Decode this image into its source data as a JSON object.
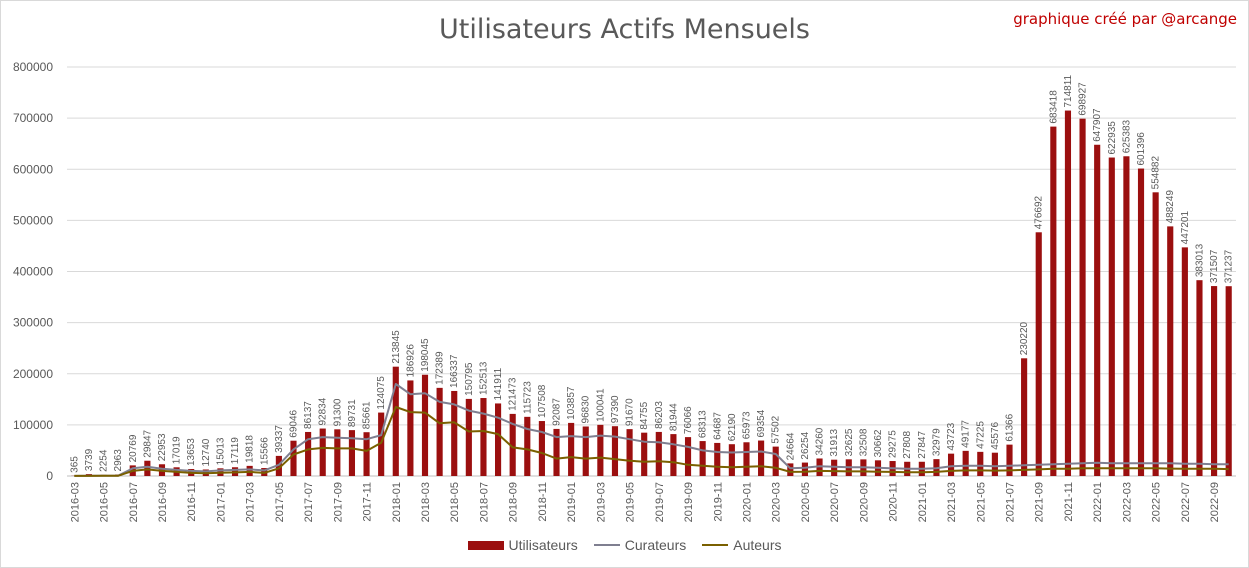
{
  "header": {
    "title": "Utilisateurs Actifs Mensuels",
    "credit": "graphique créé par  @arcange"
  },
  "colors": {
    "users": "#9b0f0f",
    "curators": "#7f7f90",
    "authors": "#7a6000",
    "grid": "#d9d9d9",
    "text": "#595959"
  },
  "chart_data": {
    "type": "bar",
    "title": "Utilisateurs Actifs Mensuels",
    "ylim": [
      0,
      800000
    ],
    "yticks": [
      0,
      100000,
      200000,
      300000,
      400000,
      500000,
      600000,
      700000,
      800000
    ],
    "grid": true,
    "legend_position": "bottom",
    "categories": [
      "2016-03",
      "2016-04",
      "2016-05",
      "2016-06",
      "2016-07",
      "2016-08",
      "2016-09",
      "2016-10",
      "2016-11",
      "2016-12",
      "2017-01",
      "2017-02",
      "2017-03",
      "2017-04",
      "2017-05",
      "2017-06",
      "2017-07",
      "2017-08",
      "2017-09",
      "2017-10",
      "2017-11",
      "2017-12",
      "2018-01",
      "2018-02",
      "2018-03",
      "2018-04",
      "2018-05",
      "2018-06",
      "2018-07",
      "2018-08",
      "2018-09",
      "2018-10",
      "2018-11",
      "2018-12",
      "2019-01",
      "2019-02",
      "2019-03",
      "2019-04",
      "2019-05",
      "2019-06",
      "2019-07",
      "2019-08",
      "2019-09",
      "2019-10",
      "2019-11",
      "2019-12",
      "2020-01",
      "2020-02",
      "2020-03",
      "2020-04",
      "2020-05",
      "2020-06",
      "2020-07",
      "2020-08",
      "2020-09",
      "2020-10",
      "2020-11",
      "2020-12",
      "2021-01",
      "2021-02",
      "2021-03",
      "2021-04",
      "2021-05",
      "2021-06",
      "2021-07",
      "2021-08",
      "2021-09",
      "2021-10",
      "2021-11",
      "2021-12",
      "2022-01",
      "2022-02",
      "2022-03",
      "2022-04",
      "2022-05",
      "2022-06",
      "2022-07",
      "2022-08",
      "2022-09",
      "2022-10"
    ],
    "series": [
      {
        "name": "Utilisateurs",
        "type": "bar",
        "values": [
          365,
          3739,
          2254,
          2963,
          20769,
          29847,
          22953,
          17019,
          13653,
          12740,
          15013,
          17119,
          19818,
          15566,
          39337,
          69046,
          86137,
          92834,
          91300,
          89731,
          85661,
          124075,
          213845,
          186926,
          198045,
          172389,
          166337,
          150795,
          152513,
          141911,
          121473,
          115723,
          107508,
          92087,
          103857,
          96830,
          100041,
          97390,
          91670,
          84755,
          86203,
          81944,
          76066,
          68313,
          64687,
          62190,
          65973,
          69354,
          57502,
          24664,
          26254,
          34260,
          31913,
          32625,
          32508,
          30662,
          29275,
          27808,
          27847,
          32979,
          43723,
          49177,
          47225,
          45576,
          61366,
          230220,
          476692,
          683418,
          714811,
          698927,
          647907,
          622935,
          625383,
          601396,
          554882,
          488249,
          447201,
          383013,
          371507,
          371237
        ]
      },
      {
        "name": "Curateurs",
        "type": "line",
        "values": [
          200,
          400,
          500,
          600,
          15000,
          18000,
          14000,
          12000,
          10000,
          9000,
          11000,
          12000,
          13000,
          11000,
          22000,
          52000,
          72000,
          76000,
          75000,
          74000,
          72000,
          80000,
          180000,
          160000,
          162000,
          145000,
          140000,
          128000,
          122000,
          114000,
          102000,
          92000,
          86000,
          76000,
          78000,
          76000,
          79000,
          77000,
          72000,
          67000,
          66000,
          62000,
          57000,
          50000,
          47000,
          46000,
          47000,
          48000,
          43000,
          15000,
          16000,
          19000,
          18000,
          17000,
          17000,
          16000,
          15000,
          14000,
          14000,
          15000,
          19000,
          20000,
          20000,
          19000,
          20000,
          21000,
          22000,
          23000,
          24000,
          25000,
          26000,
          25000,
          25000,
          25000,
          25000,
          25000,
          24000,
          24000,
          23000,
          23000
        ]
      },
      {
        "name": "Auteurs",
        "type": "line",
        "values": [
          100,
          200,
          300,
          400,
          10000,
          13000,
          10000,
          8000,
          6000,
          5500,
          6500,
          7000,
          8000,
          6000,
          15000,
          42000,
          52000,
          55000,
          54000,
          54000,
          49000,
          65000,
          135000,
          125000,
          124000,
          103000,
          105000,
          87000,
          88000,
          82000,
          56000,
          52000,
          45000,
          34000,
          37000,
          34000,
          36000,
          33000,
          30000,
          28000,
          29000,
          27000,
          22000,
          20000,
          18000,
          17000,
          18000,
          19000,
          16000,
          8000,
          8500,
          10000,
          9500,
          9000,
          9000,
          8500,
          8000,
          7500,
          7500,
          8000,
          10000,
          11000,
          11000,
          10500,
          11000,
          12000,
          13000,
          14000,
          14000,
          15000,
          15000,
          15000,
          15000,
          15000,
          15000,
          14500,
          14000,
          14000,
          14000,
          13500
        ]
      }
    ]
  }
}
